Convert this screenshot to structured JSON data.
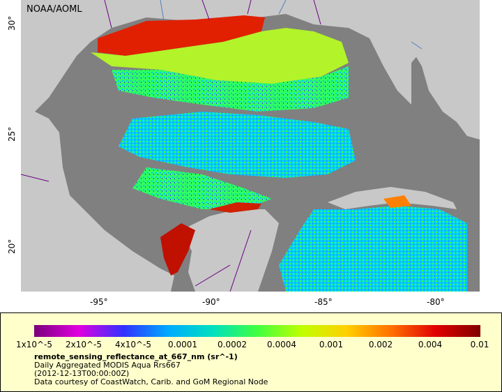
{
  "map": {
    "watermark": "NOAA/AOML",
    "land_color": "#c8c8c8",
    "nodata_color": "#808080",
    "lon_ticks": [
      "-95°",
      "-90°",
      "-85°",
      "-80°"
    ],
    "lat_ticks": [
      "30°",
      "25°",
      "20°"
    ]
  },
  "legend": {
    "colorbar_labels": [
      "1x10^-5",
      "2x10^-5",
      "4x10^-5",
      "0.0001",
      "0.0002",
      "0.0004",
      "0.001",
      "0.002",
      "0.004",
      "0.01"
    ],
    "colorbar_colors": [
      "#7a007a",
      "#e000e0",
      "#3030ff",
      "#00aaff",
      "#00e0c0",
      "#40ff40",
      "#c0ff00",
      "#ffd000",
      "#ff7000",
      "#e00000",
      "#800000"
    ],
    "variable": "remote_sensing_reflectance_at_667_nm (sr^-1)",
    "product": "Daily Aggregated MODIS Aqua Rrs667",
    "time": "(2012-12-13T00:00:00Z)",
    "credit": "Data courtesy of CoastWatch, Carib. and GoM Regional Node"
  }
}
